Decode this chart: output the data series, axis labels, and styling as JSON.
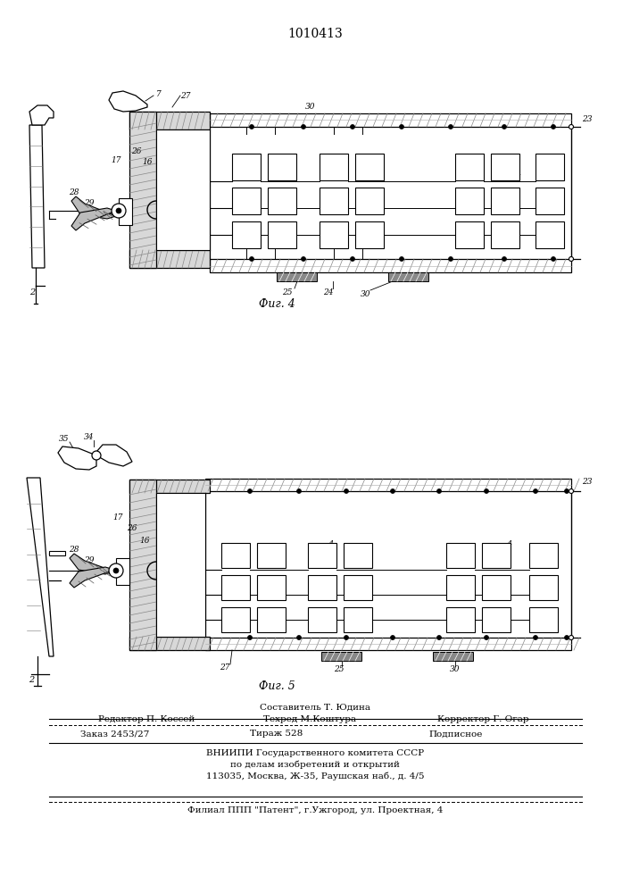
{
  "title": "1010413",
  "bg_color": "#ffffff",
  "fig4_label": "Фиг. 4",
  "fig5_label": "Фиг. 5",
  "line_color": "#1a1a1a"
}
